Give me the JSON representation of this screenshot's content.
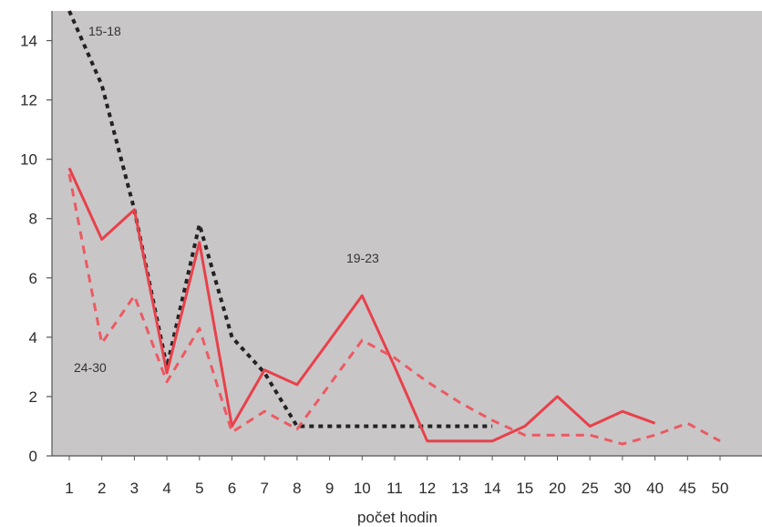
{
  "chart_data": {
    "type": "line",
    "title": "",
    "xlabel": "počet hodin",
    "ylabel": "",
    "categories": [
      "1",
      "2",
      "3",
      "4",
      "5",
      "6",
      "7",
      "8",
      "9",
      "10",
      "11",
      "12",
      "13",
      "14",
      "15",
      "20",
      "25",
      "30",
      "40",
      "45",
      "50"
    ],
    "ylim": [
      0,
      15
    ],
    "yticks": [
      0,
      2,
      4,
      6,
      8,
      10,
      12,
      14
    ],
    "grid": false,
    "legend": "none",
    "series": [
      {
        "name": "15-18",
        "style": "dotted",
        "color": "#222222",
        "values": [
          15.0,
          12.5,
          8.3,
          3.0,
          7.8,
          4.0,
          2.8,
          1.0,
          1.0,
          1.0,
          1.0,
          1.0,
          1.0,
          1.0,
          null,
          null,
          null,
          null,
          null,
          null,
          null
        ]
      },
      {
        "name": "19-23",
        "style": "solid",
        "color": "#e8414a",
        "values": [
          9.7,
          7.3,
          8.3,
          2.8,
          7.2,
          1.0,
          2.9,
          2.4,
          3.9,
          5.4,
          3.0,
          0.5,
          0.5,
          0.5,
          1.0,
          2.0,
          1.0,
          1.5,
          1.1,
          null,
          null
        ]
      },
      {
        "name": "24-30",
        "style": "dashed",
        "color": "#ec5a62",
        "values": [
          9.5,
          3.8,
          5.4,
          2.5,
          4.3,
          0.8,
          1.5,
          0.9,
          2.4,
          3.9,
          3.3,
          2.5,
          1.8,
          1.2,
          0.7,
          0.7,
          0.7,
          0.4,
          0.7,
          1.1,
          0.5
        ]
      }
    ],
    "series_labels": [
      {
        "series": "15-18",
        "text": "15-18"
      },
      {
        "series": "19-23",
        "text": "19-23"
      },
      {
        "series": "24-30",
        "text": "24-30"
      }
    ],
    "colors": {
      "plot_background": "#c9c6c8",
      "axis": "#555555"
    }
  }
}
